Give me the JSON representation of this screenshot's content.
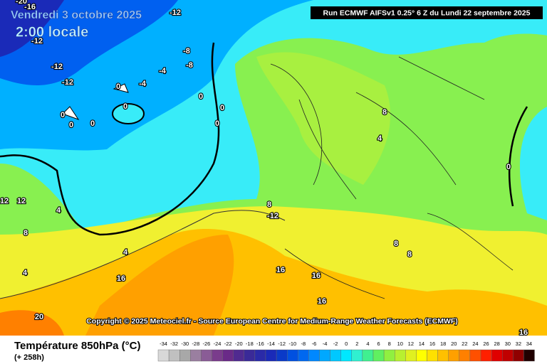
{
  "header": {
    "date": "Vendredi 3 octobre 2025",
    "time": "2:00 locale",
    "run": "Run ECMWF AIFSv1 0.25° 6 Z du Lundi 22 septembre 2025"
  },
  "copyright": "Copyright © 2025 Meteociel.fr - Source European Centre for Medium-Range Weather Forecasts (ECMWF)",
  "contour_labels": [
    -20,
    -16,
    -12,
    -12,
    -8,
    -8,
    -4,
    -12,
    -12,
    0,
    -4,
    0,
    0,
    0,
    0,
    0,
    0,
    0,
    8,
    4,
    0,
    12,
    12,
    4,
    8,
    -12,
    8,
    4,
    4,
    16,
    16,
    16,
    16,
    8,
    8,
    20,
    16
  ],
  "footer": {
    "title": "Température 850hPa (°C)",
    "lead": "(+ 258h)"
  },
  "legend": {
    "ticks": [
      -34,
      -32,
      -30,
      -28,
      -26,
      -24,
      -22,
      -20,
      -18,
      -16,
      -14,
      -12,
      -10,
      -8,
      -6,
      -4,
      -2,
      0,
      2,
      4,
      6,
      8,
      10,
      12,
      14,
      16,
      18,
      20,
      22,
      24,
      26,
      28,
      30,
      32,
      34
    ],
    "colors": [
      "#d8d8d8",
      "#c0c0c0",
      "#a8a8a8",
      "#9a7fa0",
      "#8a5c96",
      "#7a3c8c",
      "#6a2a88",
      "#502a90",
      "#3a2a98",
      "#2a2aa8",
      "#1a2ab8",
      "#0a3ac8",
      "#0050e0",
      "#0068f0",
      "#0088ff",
      "#00a8ff",
      "#00c8ff",
      "#00e8ff",
      "#30f0d0",
      "#40f090",
      "#60f060",
      "#90f040",
      "#b8f030",
      "#e0f020",
      "#ffff00",
      "#ffe000",
      "#ffc000",
      "#ffa000",
      "#ff8000",
      "#ff5000",
      "#ff2000",
      "#e00000",
      "#c00000",
      "#900000",
      "#200000"
    ]
  }
}
